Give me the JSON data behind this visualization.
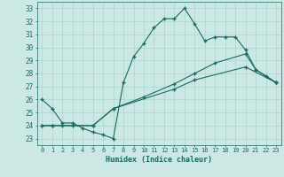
{
  "xlabel": "Humidex (Indice chaleur)",
  "xlim": [
    -0.5,
    23.5
  ],
  "ylim": [
    22.5,
    33.5
  ],
  "xticks": [
    0,
    1,
    2,
    3,
    4,
    5,
    6,
    7,
    8,
    9,
    10,
    11,
    12,
    13,
    14,
    15,
    16,
    17,
    18,
    19,
    20,
    21,
    22,
    23
  ],
  "yticks": [
    23,
    24,
    25,
    26,
    27,
    28,
    29,
    30,
    31,
    32,
    33
  ],
  "background_color": "#cce8e4",
  "grid_color": "#aad4ce",
  "line_color": "#1a6b5e",
  "lines": [
    {
      "x": [
        0,
        1,
        2,
        3,
        4,
        5,
        6,
        7,
        8,
        9,
        10,
        11,
        12,
        13,
        14,
        15,
        16,
        17,
        18,
        19,
        20,
        21,
        22,
        23
      ],
      "y": [
        26.0,
        25.3,
        24.2,
        24.2,
        23.8,
        23.5,
        23.3,
        23.0,
        27.3,
        29.3,
        30.3,
        31.5,
        32.2,
        32.2,
        33.0,
        31.8,
        30.5,
        30.8,
        30.8,
        30.8,
        29.8,
        28.3,
        27.8,
        27.3
      ]
    },
    {
      "x": [
        0,
        1,
        2,
        3,
        5,
        7,
        10,
        13,
        15,
        17,
        20,
        21,
        23
      ],
      "y": [
        24.0,
        24.0,
        24.0,
        24.0,
        24.0,
        25.3,
        26.2,
        27.2,
        28.0,
        28.8,
        29.5,
        28.3,
        27.3
      ]
    },
    {
      "x": [
        0,
        1,
        5,
        7,
        13,
        15,
        20,
        23
      ],
      "y": [
        24.0,
        24.0,
        24.0,
        25.3,
        26.8,
        27.5,
        28.5,
        27.3
      ]
    }
  ]
}
